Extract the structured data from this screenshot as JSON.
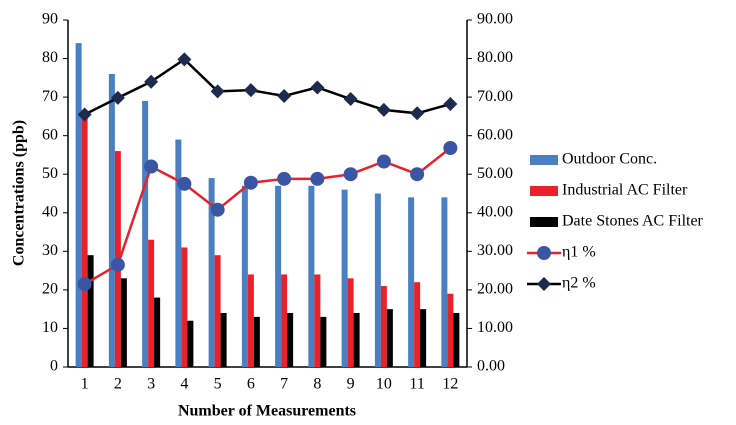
{
  "chart_data": {
    "type": "combo",
    "xlabel": "Number of Measurements",
    "ylabel": "Concentrations (ppb)",
    "categories": [
      "1",
      "2",
      "3",
      "4",
      "5",
      "6",
      "7",
      "8",
      "9",
      "10",
      "11",
      "12"
    ],
    "ylim": [
      0,
      90
    ],
    "yticks": [
      0,
      10,
      20,
      30,
      40,
      50,
      60,
      70,
      80,
      90
    ],
    "y2lim": [
      0,
      90
    ],
    "y2ticks": [
      {
        "value": 0,
        "label": "0.00"
      },
      {
        "value": 10,
        "label": "10.00"
      },
      {
        "value": 20,
        "label": "20.00"
      },
      {
        "value": 30,
        "label": "30.00"
      },
      {
        "value": 40,
        "label": "40.00"
      },
      {
        "value": 50,
        "label": "50.00"
      },
      {
        "value": 60,
        "label": "60.00"
      },
      {
        "value": 70,
        "label": "70.00"
      },
      {
        "value": 80,
        "label": "80.00"
      },
      {
        "value": 90,
        "label": "90.00"
      }
    ],
    "grid": false,
    "legend": "right",
    "series": [
      {
        "name": "Outdoor Conc.",
        "type": "bar",
        "color": "#4a7fc1",
        "values": [
          84,
          76,
          69,
          59,
          49,
          47,
          47,
          47,
          46,
          45,
          44,
          44
        ]
      },
      {
        "name": "Industrial AC Filter",
        "type": "bar",
        "color": "#e8212a",
        "values": [
          65,
          56,
          33,
          31,
          29,
          24,
          24,
          24,
          23,
          21,
          22,
          19
        ]
      },
      {
        "name": "Date Stones AC Filter",
        "type": "bar",
        "color": "#000000",
        "values": [
          29,
          23,
          18,
          12,
          14,
          13,
          14,
          13,
          14,
          15,
          15,
          14
        ]
      },
      {
        "name": "η1  %",
        "type": "line",
        "axis": "y2",
        "color": "#e8212a",
        "marker": "circle",
        "marker_color": "#3a55a4",
        "values": [
          21.5,
          26.5,
          52,
          47.5,
          40.8,
          47.8,
          48.8,
          48.8,
          50,
          53.3,
          50,
          56.8
        ]
      },
      {
        "name": "η2  %",
        "type": "line",
        "axis": "y2",
        "color": "#000000",
        "marker": "diamond",
        "marker_color": "#1f2a4f",
        "values": [
          65.5,
          69.8,
          74,
          79.8,
          71.5,
          71.8,
          70.3,
          72.5,
          69.5,
          66.7,
          65.8,
          68.2
        ]
      }
    ]
  }
}
